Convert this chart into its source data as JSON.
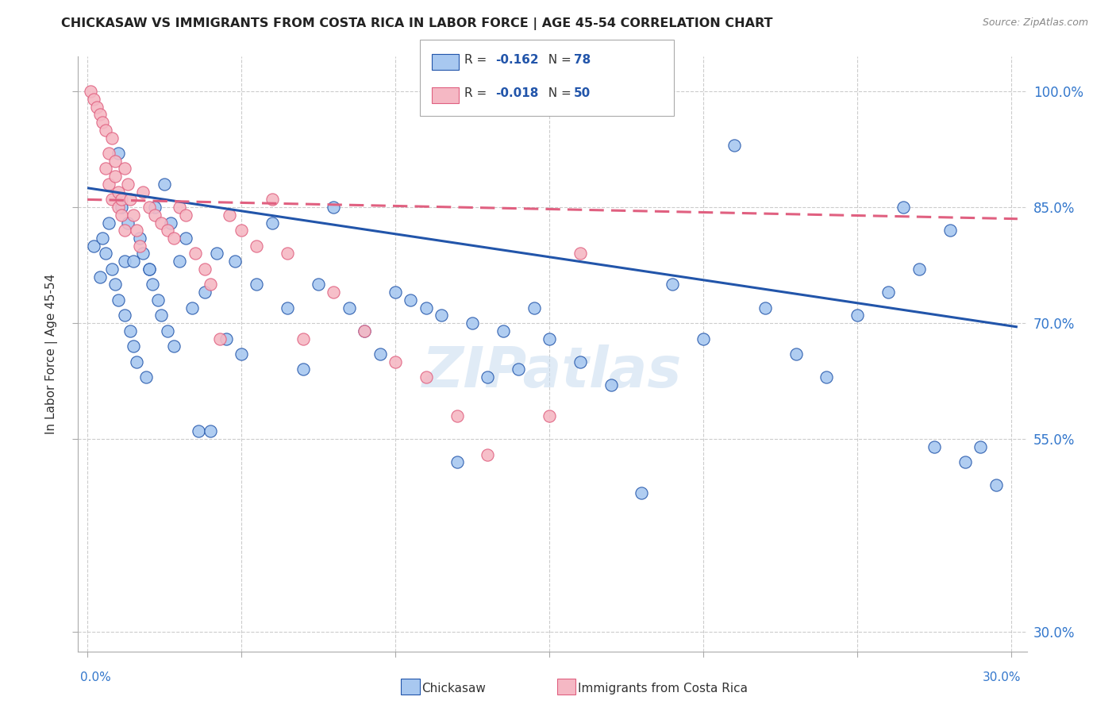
{
  "title": "CHICKASAW VS IMMIGRANTS FROM COSTA RICA IN LABOR FORCE | AGE 45-54 CORRELATION CHART",
  "source": "Source: ZipAtlas.com",
  "ylabel": "In Labor Force | Age 45-54",
  "ylim": [
    0.275,
    1.045
  ],
  "xlim": [
    -0.003,
    0.305
  ],
  "yticks": [
    0.3,
    0.55,
    0.7,
    0.85,
    1.0
  ],
  "ytick_labels": [
    "30.0%",
    "55.0%",
    "70.0%",
    "85.0%",
    "100.0%"
  ],
  "xticks": [
    0.0,
    0.05,
    0.1,
    0.15,
    0.2,
    0.25,
    0.3
  ],
  "blue_R": "-0.162",
  "blue_N": "78",
  "pink_R": "-0.018",
  "pink_N": "50",
  "blue_color": "#A8C8F0",
  "pink_color": "#F5B8C4",
  "blue_line_color": "#2255AA",
  "pink_line_color": "#E06080",
  "watermark": "ZIPatlas",
  "legend_blue_label": "Chickasaw",
  "legend_pink_label": "Immigrants from Costa Rica",
  "blue_trend_x0": 0.0,
  "blue_trend_y0": 0.875,
  "blue_trend_x1": 0.302,
  "blue_trend_y1": 0.695,
  "pink_trend_x0": 0.0,
  "pink_trend_y0": 0.86,
  "pink_trend_x1": 0.302,
  "pink_trend_y1": 0.835,
  "blue_scatter_x": [
    0.002,
    0.004,
    0.005,
    0.006,
    0.007,
    0.008,
    0.009,
    0.01,
    0.011,
    0.012,
    0.013,
    0.014,
    0.015,
    0.016,
    0.017,
    0.018,
    0.019,
    0.02,
    0.021,
    0.022,
    0.023,
    0.024,
    0.025,
    0.026,
    0.027,
    0.028,
    0.03,
    0.032,
    0.034,
    0.036,
    0.038,
    0.04,
    0.042,
    0.045,
    0.048,
    0.05,
    0.055,
    0.06,
    0.065,
    0.07,
    0.075,
    0.08,
    0.085,
    0.09,
    0.095,
    0.1,
    0.105,
    0.11,
    0.115,
    0.12,
    0.125,
    0.13,
    0.135,
    0.14,
    0.145,
    0.15,
    0.16,
    0.17,
    0.18,
    0.19,
    0.2,
    0.21,
    0.22,
    0.23,
    0.24,
    0.25,
    0.26,
    0.265,
    0.27,
    0.275,
    0.28,
    0.285,
    0.29,
    0.295,
    0.01,
    0.012,
    0.015,
    0.02
  ],
  "blue_scatter_y": [
    0.8,
    0.76,
    0.81,
    0.79,
    0.83,
    0.77,
    0.75,
    0.73,
    0.85,
    0.71,
    0.83,
    0.69,
    0.67,
    0.65,
    0.81,
    0.79,
    0.63,
    0.77,
    0.75,
    0.85,
    0.73,
    0.71,
    0.88,
    0.69,
    0.83,
    0.67,
    0.78,
    0.81,
    0.72,
    0.56,
    0.74,
    0.56,
    0.79,
    0.68,
    0.78,
    0.66,
    0.75,
    0.83,
    0.72,
    0.64,
    0.75,
    0.85,
    0.72,
    0.69,
    0.66,
    0.74,
    0.73,
    0.72,
    0.71,
    0.52,
    0.7,
    0.63,
    0.69,
    0.64,
    0.72,
    0.68,
    0.65,
    0.62,
    0.48,
    0.75,
    0.68,
    0.93,
    0.72,
    0.66,
    0.63,
    0.71,
    0.74,
    0.85,
    0.77,
    0.54,
    0.82,
    0.52,
    0.54,
    0.49,
    0.92,
    0.78,
    0.78,
    0.77
  ],
  "pink_scatter_x": [
    0.001,
    0.002,
    0.003,
    0.004,
    0.005,
    0.006,
    0.006,
    0.007,
    0.007,
    0.008,
    0.008,
    0.009,
    0.009,
    0.01,
    0.01,
    0.011,
    0.011,
    0.012,
    0.012,
    0.013,
    0.014,
    0.015,
    0.016,
    0.017,
    0.018,
    0.02,
    0.022,
    0.024,
    0.026,
    0.028,
    0.03,
    0.032,
    0.035,
    0.038,
    0.04,
    0.043,
    0.046,
    0.05,
    0.055,
    0.06,
    0.065,
    0.07,
    0.08,
    0.09,
    0.1,
    0.11,
    0.12,
    0.13,
    0.15,
    0.16
  ],
  "pink_scatter_y": [
    1.0,
    0.99,
    0.98,
    0.97,
    0.96,
    0.95,
    0.9,
    0.88,
    0.92,
    0.94,
    0.86,
    0.91,
    0.89,
    0.87,
    0.85,
    0.86,
    0.84,
    0.82,
    0.9,
    0.88,
    0.86,
    0.84,
    0.82,
    0.8,
    0.87,
    0.85,
    0.84,
    0.83,
    0.82,
    0.81,
    0.85,
    0.84,
    0.79,
    0.77,
    0.75,
    0.68,
    0.84,
    0.82,
    0.8,
    0.86,
    0.79,
    0.68,
    0.74,
    0.69,
    0.65,
    0.63,
    0.58,
    0.53,
    0.58,
    0.79
  ]
}
